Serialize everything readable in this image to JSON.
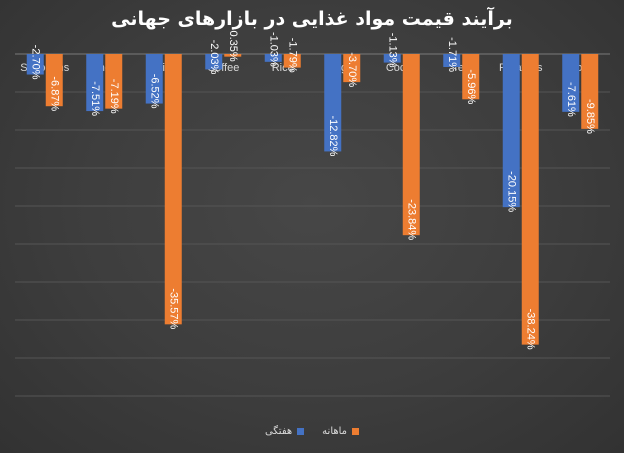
{
  "chart_data": {
    "type": "bar",
    "title": "برآیند قیمت مواد غذایی در بازارهای جهانی",
    "categories": [
      "Soybeans",
      "Wheat",
      "Juice",
      "Coffee",
      "Rice",
      "Sugar",
      "Cocoa",
      "Tea",
      "Potatoes",
      "Corn"
    ],
    "series": [
      {
        "name": "هفتگی",
        "color": "#4472c4",
        "values": [
          -2.7,
          -7.51,
          -6.52,
          -2.03,
          -1.03,
          -12.82,
          -1.13,
          -1.71,
          -20.15,
          -7.61
        ]
      },
      {
        "name": "ماهانه",
        "color": "#ed7d31",
        "values": [
          -6.87,
          -7.19,
          -35.57,
          -0.35,
          -1.79,
          -3.7,
          -23.84,
          -5.96,
          -38.24,
          -9.85
        ]
      }
    ],
    "ylim": [
      -45,
      0
    ],
    "grid": true,
    "legend_position": "bottom",
    "data_label_format": "percent_2dp",
    "xlabel": "",
    "ylabel": ""
  }
}
